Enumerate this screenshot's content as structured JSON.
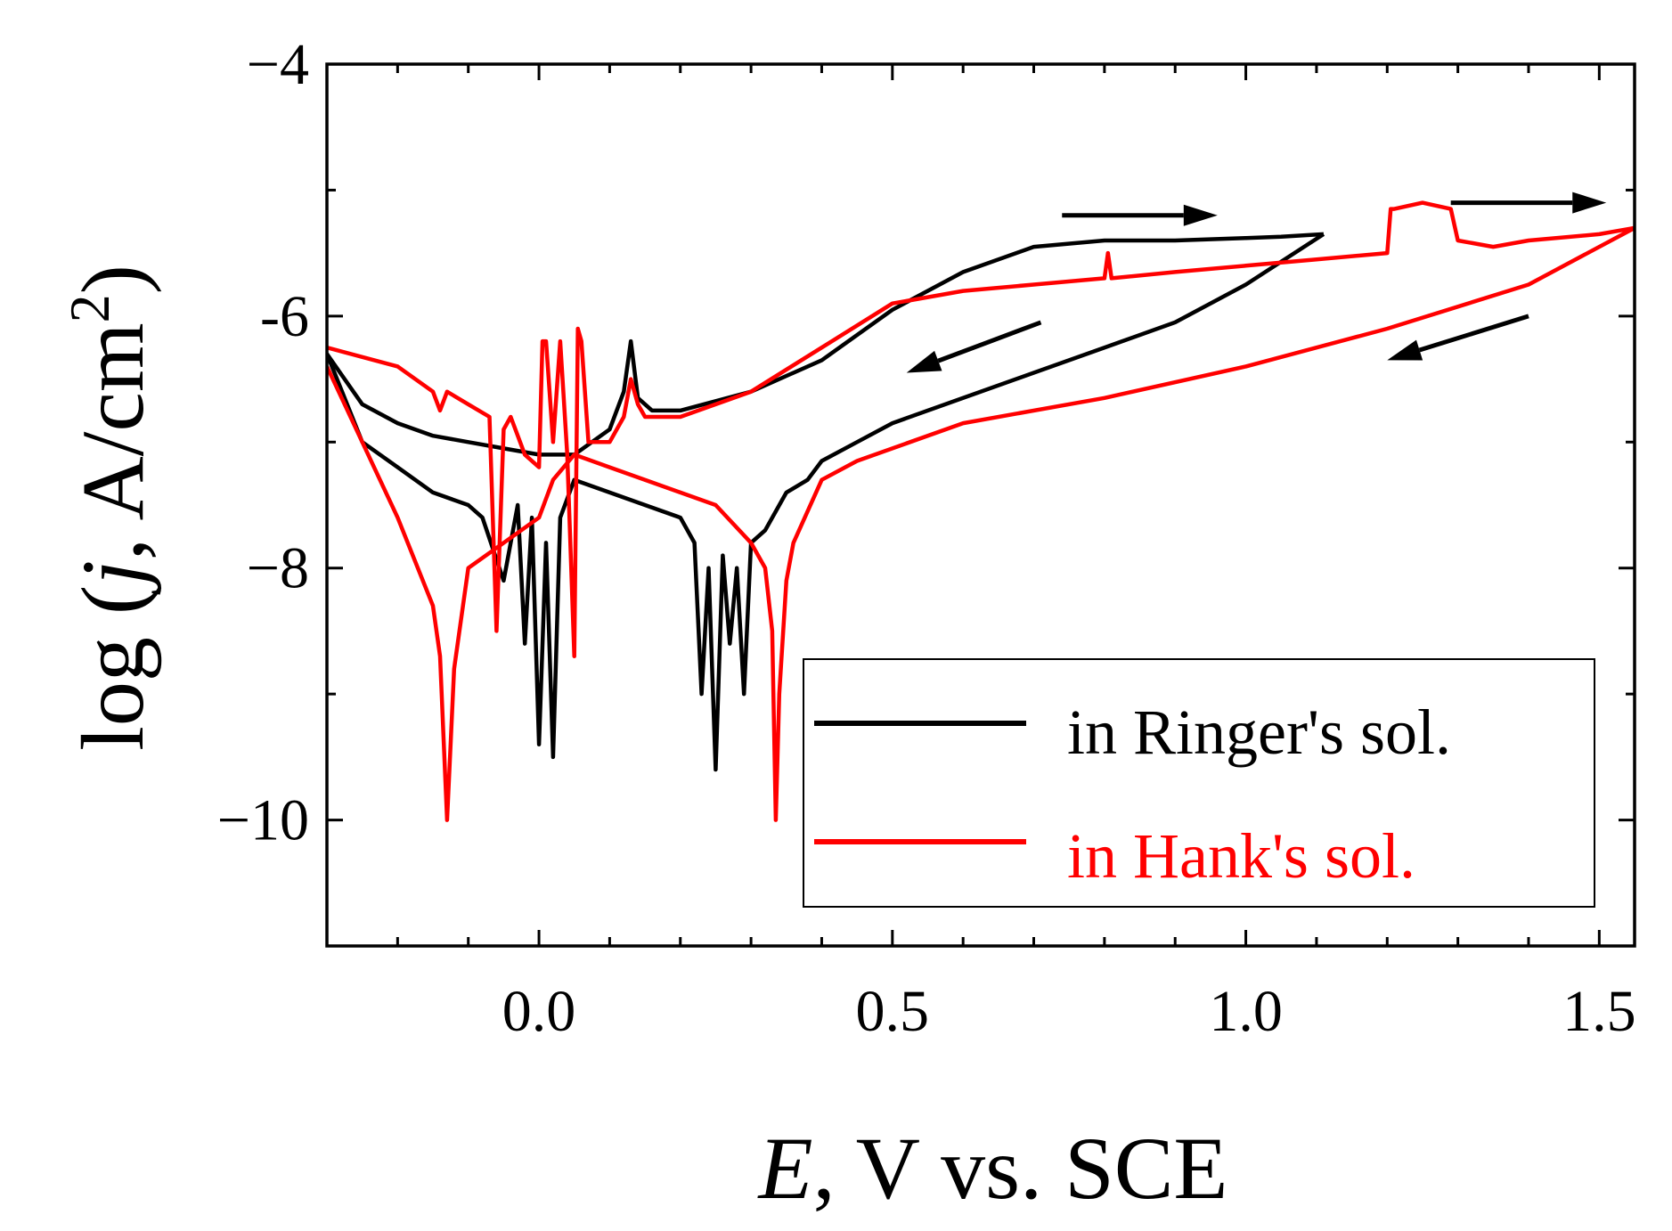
{
  "chart_data": {
    "type": "line",
    "xlabel": {
      "italic": "E",
      "rest": ", V vs. SCE"
    },
    "ylabel": {
      "prefix": "log (",
      "italic": "j",
      "rest": ", A/cm",
      "sup": "2",
      "suffix": ")"
    },
    "xlim": [
      -0.3,
      1.55
    ],
    "ylim": [
      -11,
      -4
    ],
    "xticks": [
      0.0,
      0.5,
      1.0,
      1.5
    ],
    "xtick_labels": [
      "0.0",
      "0.5",
      "1.0",
      "1.5"
    ],
    "xminor_step": 0.1,
    "yticks": [
      -4,
      -6,
      -8,
      -10
    ],
    "ytick_labels": [
      "−4",
      "-6",
      "−8",
      "−10"
    ],
    "yminor_step": 1,
    "series": [
      {
        "name": "in Ringer's sol.",
        "color": "#000000",
        "forward_x": [
          -0.3,
          -0.25,
          -0.2,
          -0.15,
          -0.1,
          -0.05,
          0.0,
          0.05,
          0.1,
          0.12,
          0.13,
          0.14,
          0.16,
          0.2,
          0.3,
          0.4,
          0.5,
          0.6,
          0.7,
          0.8,
          0.9,
          1.0,
          1.05,
          1.11
        ],
        "forward_y": [
          -6.3,
          -6.7,
          -6.85,
          -6.95,
          -7.0,
          -7.05,
          -7.1,
          -7.1,
          -6.9,
          -6.6,
          -6.2,
          -6.65,
          -6.75,
          -6.75,
          -6.6,
          -6.35,
          -5.95,
          -5.65,
          -5.45,
          -5.4,
          -5.4,
          -5.38,
          -5.37,
          -5.35
        ],
        "reverse_x": [
          1.11,
          1.0,
          0.9,
          0.8,
          0.7,
          0.6,
          0.5,
          0.45,
          0.4,
          0.38,
          0.35,
          0.32,
          0.3,
          0.29,
          0.28,
          0.27,
          0.26,
          0.25,
          0.24,
          0.23,
          0.22,
          0.2,
          0.15,
          0.1,
          0.05,
          0.03,
          0.02,
          0.01,
          0.0,
          -0.01,
          -0.02,
          -0.03,
          -0.05,
          -0.08,
          -0.1,
          -0.15,
          -0.2,
          -0.25,
          -0.3
        ],
        "reverse_y": [
          -5.35,
          -5.75,
          -6.05,
          -6.25,
          -6.45,
          -6.65,
          -6.85,
          -7.0,
          -7.15,
          -7.3,
          -7.4,
          -7.7,
          -7.8,
          -9.0,
          -8.0,
          -8.6,
          -7.9,
          -9.6,
          -8.0,
          -9.0,
          -7.8,
          -7.6,
          -7.5,
          -7.4,
          -7.3,
          -7.6,
          -9.5,
          -7.8,
          -9.4,
          -7.6,
          -8.6,
          -7.5,
          -8.1,
          -7.6,
          -7.5,
          -7.4,
          -7.2,
          -7.0,
          -6.3
        ],
        "peak_labels_note": "noisy region between -0.1 and 0.3 V"
      },
      {
        "name": "in Hank's sol.",
        "color": "#ff0000",
        "forward_x": [
          -0.3,
          -0.2,
          -0.15,
          -0.14,
          -0.13,
          -0.1,
          -0.07,
          -0.06,
          -0.05,
          -0.04,
          -0.02,
          0.0,
          0.005,
          0.01,
          0.02,
          0.03,
          0.04,
          0.05,
          0.055,
          0.06,
          0.07,
          0.1,
          0.12,
          0.13,
          0.14,
          0.15,
          0.2,
          0.3,
          0.4,
          0.5,
          0.6,
          0.7,
          0.8,
          0.805,
          0.81,
          0.9,
          1.0,
          1.1,
          1.2,
          1.205,
          1.21,
          1.25,
          1.29,
          1.3,
          1.35,
          1.4,
          1.5,
          1.55
        ],
        "forward_y": [
          -6.25,
          -6.4,
          -6.6,
          -6.75,
          -6.6,
          -6.7,
          -6.8,
          -8.5,
          -6.9,
          -6.8,
          -7.1,
          -7.2,
          -6.2,
          -6.2,
          -7.0,
          -6.2,
          -7.1,
          -8.7,
          -6.1,
          -6.2,
          -7.0,
          -7.0,
          -6.8,
          -6.5,
          -6.7,
          -6.8,
          -6.8,
          -6.6,
          -6.25,
          -5.9,
          -5.8,
          -5.75,
          -5.7,
          -5.5,
          -5.7,
          -5.65,
          -5.6,
          -5.55,
          -5.5,
          -5.15,
          -5.15,
          -5.1,
          -5.15,
          -5.4,
          -5.45,
          -5.4,
          -5.35,
          -5.3
        ],
        "reverse_x": [
          1.55,
          1.4,
          1.2,
          1.0,
          0.8,
          0.6,
          0.45,
          0.4,
          0.38,
          0.36,
          0.35,
          0.34,
          0.335,
          0.33,
          0.32,
          0.3,
          0.25,
          0.2,
          0.15,
          0.1,
          0.05,
          0.02,
          0.0,
          -0.05,
          -0.1,
          -0.12,
          -0.13,
          -0.14,
          -0.15,
          -0.2,
          -0.25,
          -0.3
        ],
        "reverse_y": [
          -5.3,
          -5.75,
          -6.1,
          -6.4,
          -6.65,
          -6.85,
          -7.15,
          -7.3,
          -7.55,
          -7.8,
          -8.1,
          -9.0,
          -10.0,
          -8.5,
          -8.0,
          -7.8,
          -7.5,
          -7.4,
          -7.3,
          -7.2,
          -7.1,
          -7.3,
          -7.6,
          -7.8,
          -8.0,
          -8.8,
          -10.0,
          -8.7,
          -8.3,
          -7.6,
          -7.0,
          -6.4
        ]
      }
    ],
    "annotations": [
      {
        "type": "arrow",
        "from": [
          0.74,
          -5.2
        ],
        "to": [
          0.96,
          -5.2
        ],
        "color": "#000000"
      },
      {
        "type": "arrow",
        "from": [
          1.29,
          -5.1
        ],
        "to": [
          1.51,
          -5.1
        ],
        "color": "#000000"
      },
      {
        "type": "arrow",
        "from": [
          0.71,
          -6.05
        ],
        "to": [
          0.52,
          -6.45
        ],
        "color": "#000000"
      },
      {
        "type": "arrow",
        "from": [
          1.4,
          -6.0
        ],
        "to": [
          1.2,
          -6.35
        ],
        "color": "#000000"
      }
    ],
    "legend": {
      "position": "bottom-right",
      "entries": [
        "in Ringer's sol.",
        "in Hank's sol."
      ]
    }
  }
}
